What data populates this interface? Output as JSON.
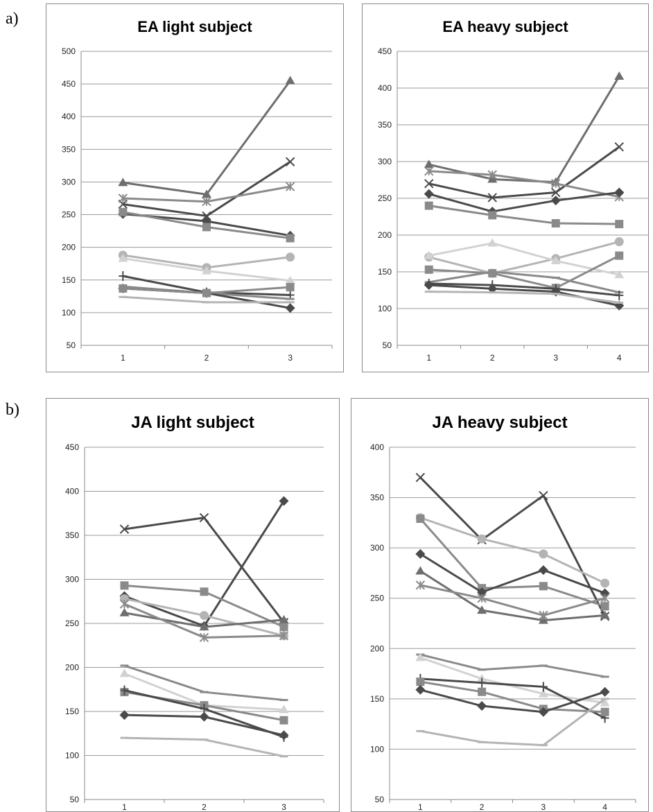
{
  "panel_labels": {
    "a": "a)",
    "b": "b)"
  },
  "colors": {
    "dark": "#4a4a4a",
    "mid": "#6e6e6e",
    "gray": "#8a8a8a",
    "light": "#b4b4b4",
    "pale": "#d2d2d2",
    "grid": "#9a9a9a",
    "axis": "#888888"
  },
  "chart_data": [
    {
      "type": "line",
      "title": "EA light subject",
      "categories": [
        "1",
        "2",
        "3"
      ],
      "ylim": [
        50,
        500
      ],
      "yticks": [
        50,
        100,
        150,
        200,
        250,
        300,
        350,
        400,
        450,
        500
      ],
      "grid": true,
      "series": [
        {
          "values": [
            299,
            281,
            455
          ],
          "color": "mid",
          "marker": "triangle"
        },
        {
          "values": [
            266,
            248,
            331
          ],
          "color": "dark",
          "marker": "x"
        },
        {
          "values": [
            275,
            270,
            293
          ],
          "color": "gray",
          "marker": "asterisk"
        },
        {
          "values": [
            251,
            240,
            218
          ],
          "color": "dark",
          "marker": "diamond"
        },
        {
          "values": [
            254,
            231,
            214
          ],
          "color": "gray",
          "marker": "square"
        },
        {
          "values": [
            188,
            169,
            185
          ],
          "color": "light",
          "marker": "circle"
        },
        {
          "values": [
            183,
            164,
            149
          ],
          "color": "pale",
          "marker": "triangle"
        },
        {
          "values": [
            156,
            131,
            127
          ],
          "color": "dark",
          "marker": "plus"
        },
        {
          "values": [
            140,
            130,
            121
          ],
          "color": "gray",
          "marker": "dash"
        },
        {
          "values": [
            137,
            130,
            107
          ],
          "color": "dark",
          "marker": "diamond"
        },
        {
          "values": [
            137,
            130,
            139
          ],
          "color": "gray",
          "marker": "square"
        },
        {
          "values": [
            124,
            116,
            116
          ],
          "color": "light",
          "marker": "dash"
        }
      ]
    },
    {
      "type": "line",
      "title": "EA heavy subject",
      "categories": [
        "1",
        "2",
        "3",
        "4"
      ],
      "ylim": [
        50,
        450
      ],
      "yticks": [
        50,
        100,
        150,
        200,
        250,
        300,
        350,
        400,
        450
      ],
      "grid": true,
      "series": [
        {
          "values": [
            296,
            276,
            272,
            416
          ],
          "color": "mid",
          "marker": "triangle"
        },
        {
          "values": [
            270,
            251,
            258,
            320
          ],
          "color": "dark",
          "marker": "x"
        },
        {
          "values": [
            287,
            282,
            270,
            252
          ],
          "color": "gray",
          "marker": "asterisk"
        },
        {
          "values": [
            256,
            232,
            247,
            258
          ],
          "color": "dark",
          "marker": "diamond"
        },
        {
          "values": [
            240,
            227,
            216,
            215
          ],
          "color": "gray",
          "marker": "square"
        },
        {
          "values": [
            170,
            148,
            168,
            191
          ],
          "color": "light",
          "marker": "circle"
        },
        {
          "values": [
            172,
            189,
            165,
            146
          ],
          "color": "pale",
          "marker": "triangle"
        },
        {
          "values": [
            153,
            148,
            128,
            172
          ],
          "color": "gray",
          "marker": "square"
        },
        {
          "values": [
            136,
            150,
            142,
            122
          ],
          "color": "gray",
          "marker": "dash"
        },
        {
          "values": [
            134,
            132,
            127,
            118
          ],
          "color": "dark",
          "marker": "plus"
        },
        {
          "values": [
            132,
            127,
            123,
            104
          ],
          "color": "dark",
          "marker": "diamond"
        },
        {
          "values": [
            123,
            122,
            120,
            108
          ],
          "color": "light",
          "marker": "dash"
        }
      ]
    },
    {
      "type": "line",
      "title": "JA light subject",
      "categories": [
        "1",
        "2",
        "3"
      ],
      "ylim": [
        50,
        450
      ],
      "yticks": [
        50,
        100,
        150,
        200,
        250,
        300,
        350,
        400,
        450
      ],
      "grid": true,
      "series": [
        {
          "values": [
            357,
            370,
            251
          ],
          "color": "dark",
          "marker": "x"
        },
        {
          "values": [
            281,
            247,
            389
          ],
          "color": "dark",
          "marker": "diamond"
        },
        {
          "values": [
            293,
            286,
            246
          ],
          "color": "gray",
          "marker": "square"
        },
        {
          "values": [
            278,
            259,
            236
          ],
          "color": "light",
          "marker": "circle"
        },
        {
          "values": [
            262,
            246,
            254
          ],
          "color": "mid",
          "marker": "triangle"
        },
        {
          "values": [
            272,
            234,
            236
          ],
          "color": "gray",
          "marker": "asterisk"
        },
        {
          "values": [
            202,
            172,
            163
          ],
          "color": "gray",
          "marker": "dash"
        },
        {
          "values": [
            193,
            157,
            152
          ],
          "color": "pale",
          "marker": "triangle"
        },
        {
          "values": [
            172,
            157,
            140
          ],
          "color": "gray",
          "marker": "square"
        },
        {
          "values": [
            174,
            153,
            121
          ],
          "color": "dark",
          "marker": "plus"
        },
        {
          "values": [
            146,
            144,
            123
          ],
          "color": "dark",
          "marker": "diamond"
        },
        {
          "values": [
            120,
            118,
            99
          ],
          "color": "light",
          "marker": "dash"
        }
      ]
    },
    {
      "type": "line",
      "title": "JA heavy subject",
      "categories": [
        "1",
        "2",
        "3",
        "4"
      ],
      "ylim": [
        50,
        400
      ],
      "yticks": [
        50,
        100,
        150,
        200,
        250,
        300,
        350,
        400
      ],
      "grid": true,
      "series": [
        {
          "values": [
            370,
            308,
            352,
            232
          ],
          "color": "dark",
          "marker": "x"
        },
        {
          "values": [
            330,
            309,
            294,
            265
          ],
          "color": "light",
          "marker": "circle"
        },
        {
          "values": [
            329,
            260,
            262,
            242
          ],
          "color": "gray",
          "marker": "square"
        },
        {
          "values": [
            294,
            256,
            278,
            255
          ],
          "color": "dark",
          "marker": "diamond"
        },
        {
          "values": [
            277,
            238,
            228,
            233
          ],
          "color": "mid",
          "marker": "triangle"
        },
        {
          "values": [
            263,
            250,
            233,
            250
          ],
          "color": "gray",
          "marker": "asterisk"
        },
        {
          "values": [
            194,
            179,
            183,
            172
          ],
          "color": "gray",
          "marker": "dash"
        },
        {
          "values": [
            191,
            170,
            155,
            146
          ],
          "color": "pale",
          "marker": "triangle"
        },
        {
          "values": [
            170,
            166,
            162,
            131
          ],
          "color": "dark",
          "marker": "plus"
        },
        {
          "values": [
            167,
            157,
            140,
            137
          ],
          "color": "gray",
          "marker": "square"
        },
        {
          "values": [
            159,
            143,
            137,
            157
          ],
          "color": "dark",
          "marker": "diamond"
        },
        {
          "values": [
            118,
            107,
            104,
            150
          ],
          "color": "light",
          "marker": "dash"
        }
      ]
    }
  ]
}
